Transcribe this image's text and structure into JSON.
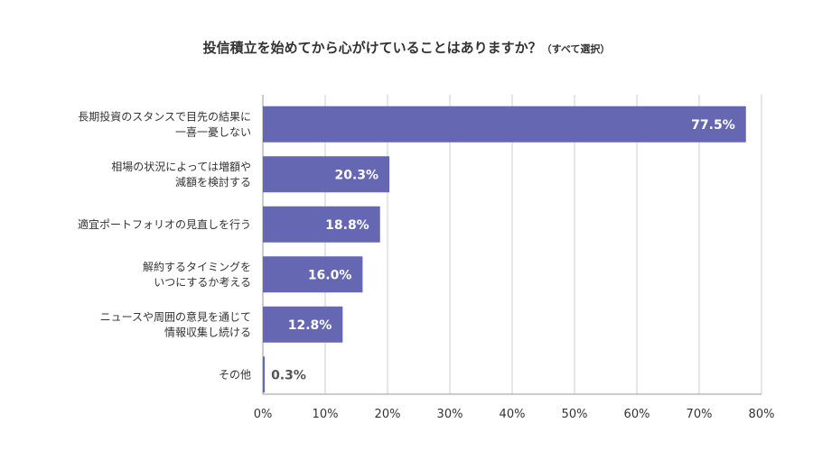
{
  "chart_data": {
    "type": "bar",
    "orientation": "horizontal",
    "title": "投信積立を始めてから心がけていることはありますか？",
    "subtitle": "（すべて選択）",
    "xlabel": "",
    "ylabel": "",
    "categories": [
      [
        "長期投資のスタンスで目先の結果に",
        "一喜一憂しない"
      ],
      [
        "相場の状況によっては増額や",
        "減額を検討する"
      ],
      [
        "適宜ポートフォリオの見直しを行う"
      ],
      [
        "解約するタイミングを",
        "いつにするか考える"
      ],
      [
        "ニュースや周囲の意見を通じて",
        "情報収集し続ける"
      ],
      [
        "その他"
      ]
    ],
    "values": [
      77.5,
      20.3,
      18.8,
      16.0,
      12.8,
      0.3
    ],
    "value_labels": [
      "77.5%",
      "20.3%",
      "18.8%",
      "16.0%",
      "12.8%",
      "0.3%"
    ],
    "xlim": [
      0,
      80
    ],
    "x_ticks": [
      "0%",
      "10%",
      "20%",
      "30%",
      "40%",
      "50%",
      "60%",
      "70%",
      "80%"
    ],
    "grid": true,
    "legend": "none",
    "colors": {
      "bar": "#6567b3",
      "label_inside": "#ffffff",
      "label_outside": "#555555",
      "grid": "#cccccc",
      "axis": "#999999"
    }
  }
}
